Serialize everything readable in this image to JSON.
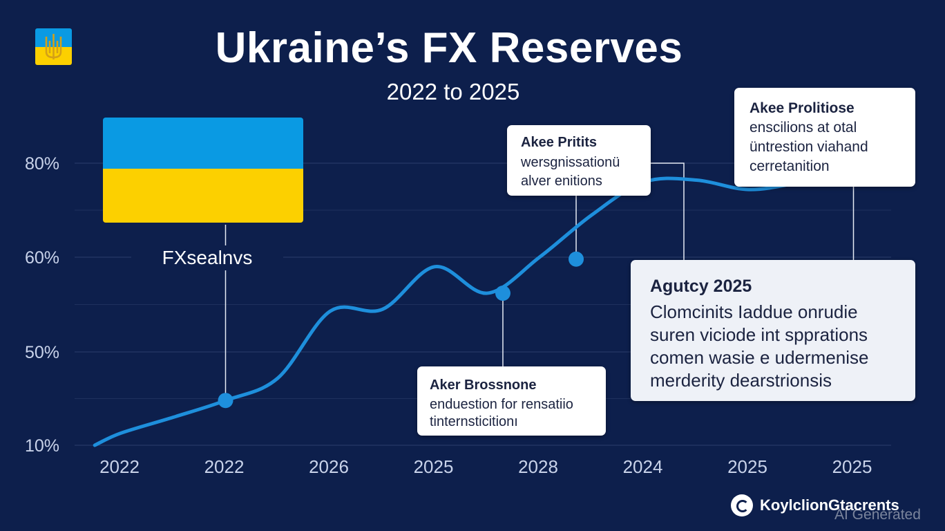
{
  "colors": {
    "background": "#0d1f4c",
    "line": "#1e8fdc",
    "flag_blue": "#0a9ae3",
    "flag_yellow": "#fcd000",
    "grid": "#2b3d6b",
    "tick_text": "#c9d3ea"
  },
  "emblem": {
    "icon": "ukraine-trident-icon"
  },
  "chart_data": {
    "type": "line",
    "title": "Ukraine’s FX Reserves",
    "subtitle": "2022 to 2025",
    "x_tick_labels": [
      "2022",
      "2022",
      "2026",
      "2025",
      "2028",
      "2024",
      "2025",
      "2025"
    ],
    "y_tick_labels": [
      "80%",
      "60%",
      "50%",
      "10%"
    ],
    "grid": true,
    "series": [
      {
        "points_x_index": [
          -0.25,
          0.0,
          0.5,
          1.0,
          1.5,
          2.0,
          2.5,
          3.0,
          3.5,
          4.0,
          4.5,
          5.0,
          5.5,
          6.0,
          6.5,
          7.0
        ],
        "points_y_level": [
          0.0,
          0.13,
          0.3,
          0.48,
          0.72,
          1.43,
          1.45,
          1.9,
          1.62,
          2.0,
          2.45,
          2.8,
          2.82,
          2.72,
          2.8,
          2.93
        ]
      }
    ],
    "highlighted_points": [
      {
        "x_index": 1.0,
        "y_level": 0.48
      },
      {
        "x_index": 3.65,
        "y_level": 1.62
      },
      {
        "x_index": 4.35,
        "y_level": 1.98
      },
      {
        "x_index": 7.0,
        "y_level": 2.93
      }
    ]
  },
  "flag_label": "FXsealnvs",
  "callouts": [
    {
      "title": "Akee Pritits",
      "lines": [
        "wersgnissationü",
        "alver enitions"
      ]
    },
    {
      "title": "Akee Prolitiose",
      "lines": [
        "enscilions at otal",
        "üntrestion viahand",
        "cerretanition"
      ]
    },
    {
      "title": "Aker Brossnone",
      "lines": [
        "enduestion for rensatiio",
        "tinternsticitionı"
      ]
    },
    {
      "title": "Agutcy 2025",
      "lines": [
        "Clomcinits Iaddue onrudie",
        "suren viciode int spprations",
        "comen wasie e udermenise",
        "merderity dearstrionsis"
      ]
    }
  ],
  "brand": {
    "name": "KoylclionGtacrents",
    "icon": "brand-logo-icon"
  },
  "watermark": "AI Generated"
}
